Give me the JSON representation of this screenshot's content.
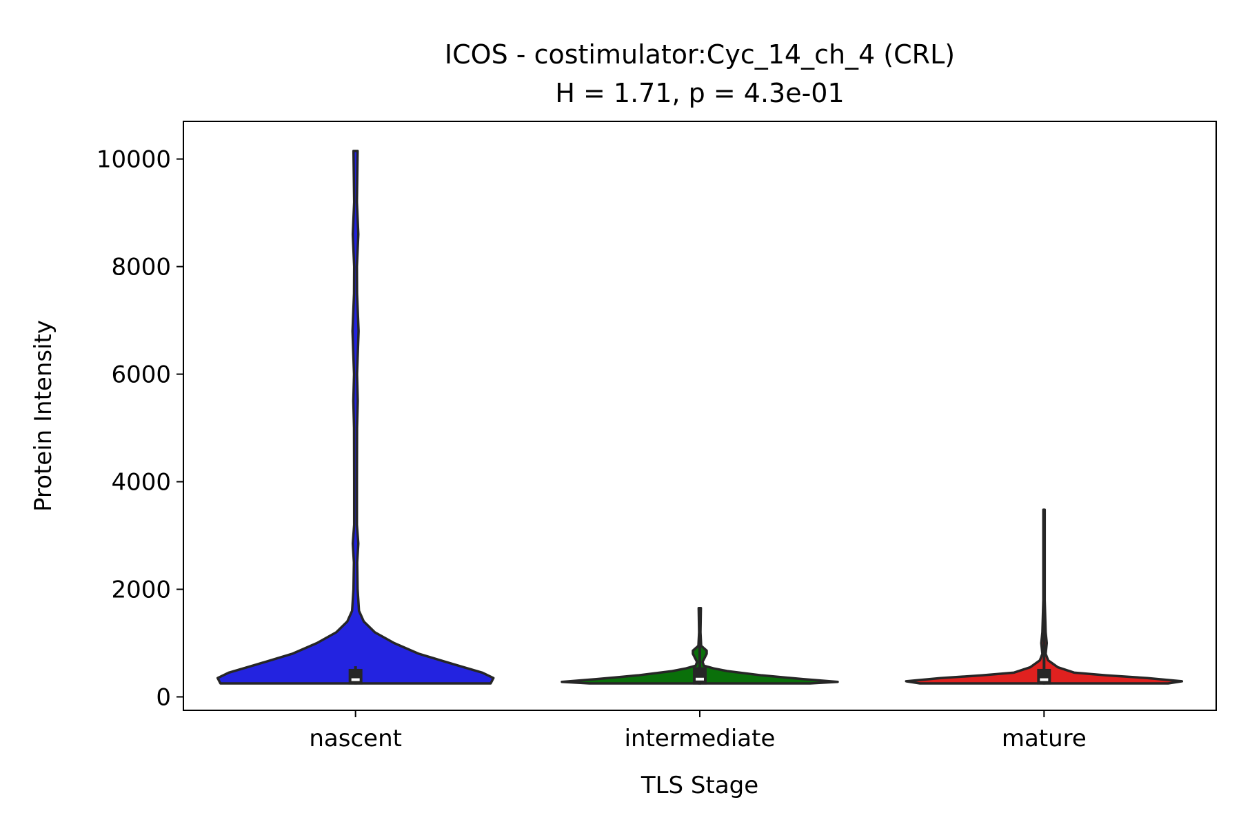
{
  "chart_data": {
    "type": "violin",
    "title": "ICOS - costimulator:Cyc_14_ch_4 (CRL)",
    "subtitle": "H = 1.71, p = 4.3e-01",
    "xlabel": "TLS Stage",
    "ylabel": "Protein Intensity",
    "ylim": [
      -250,
      10700
    ],
    "yticks": [
      0,
      2000,
      4000,
      6000,
      8000,
      10000
    ],
    "ytick_labels": [
      "0",
      "2000",
      "4000",
      "6000",
      "8000",
      "10000"
    ],
    "categories": [
      "nascent",
      "intermediate",
      "mature"
    ],
    "colors": [
      "#2323e0",
      "#0a700a",
      "#e0211f"
    ],
    "edge_color": "#262626",
    "grid": false,
    "series": [
      {
        "category": "nascent",
        "min": 250,
        "max": 10150,
        "q1": 230,
        "median": 320,
        "q3": 520,
        "whisker_low": 230,
        "whisker_high": 570,
        "density": [
          [
            250,
            0.98
          ],
          [
            350,
            1.0
          ],
          [
            450,
            0.92
          ],
          [
            600,
            0.72
          ],
          [
            800,
            0.46
          ],
          [
            1000,
            0.28
          ],
          [
            1200,
            0.14
          ],
          [
            1400,
            0.06
          ],
          [
            1600,
            0.025
          ],
          [
            2000,
            0.015
          ],
          [
            2500,
            0.012
          ],
          [
            2850,
            0.02
          ],
          [
            3200,
            0.01
          ],
          [
            4000,
            0.01
          ],
          [
            5000,
            0.011
          ],
          [
            5500,
            0.016
          ],
          [
            6000,
            0.011
          ],
          [
            6800,
            0.022
          ],
          [
            7500,
            0.011
          ],
          [
            8000,
            0.01
          ],
          [
            8600,
            0.02
          ],
          [
            9200,
            0.01
          ],
          [
            10150,
            0.015
          ]
        ]
      },
      {
        "category": "intermediate",
        "min": 250,
        "max": 1650,
        "q1": 230,
        "median": 330,
        "q3": 550,
        "whisker_low": 230,
        "whisker_high": 1650,
        "density": [
          [
            250,
            0.8
          ],
          [
            280,
            1.0
          ],
          [
            330,
            0.75
          ],
          [
            400,
            0.45
          ],
          [
            480,
            0.2
          ],
          [
            530,
            0.1
          ],
          [
            580,
            0.03
          ],
          [
            650,
            0.02
          ],
          [
            800,
            0.05
          ],
          [
            860,
            0.05
          ],
          [
            950,
            0.01
          ],
          [
            1200,
            0.005
          ],
          [
            1650,
            0.008
          ]
        ]
      },
      {
        "category": "mature",
        "min": 250,
        "max": 3480,
        "q1": 230,
        "median": 320,
        "q3": 520,
        "whisker_low": 230,
        "whisker_high": 3480,
        "density": [
          [
            250,
            0.9
          ],
          [
            290,
            1.0
          ],
          [
            350,
            0.75
          ],
          [
            400,
            0.45
          ],
          [
            450,
            0.22
          ],
          [
            550,
            0.1
          ],
          [
            680,
            0.03
          ],
          [
            800,
            0.012
          ],
          [
            1000,
            0.02
          ],
          [
            1200,
            0.012
          ],
          [
            1800,
            0.005
          ],
          [
            2500,
            0.005
          ],
          [
            3480,
            0.005
          ]
        ]
      }
    ]
  }
}
